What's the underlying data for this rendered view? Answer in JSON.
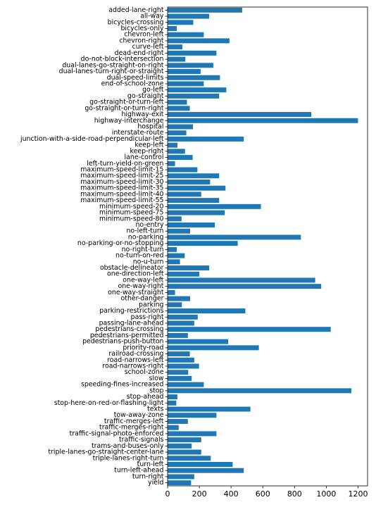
{
  "chart_data": {
    "type": "bar",
    "orientation": "horizontal",
    "bar_color": "#1f77b4",
    "xlim": [
      0,
      1260
    ],
    "xticks": [
      0,
      200,
      400,
      600,
      800,
      1000,
      1200
    ],
    "grid": false,
    "categories": [
      "added-lane-right",
      "all-way",
      "bicycles-crossing",
      "bicycles-only",
      "chevron-left",
      "chevron-right",
      "curve-left",
      "dead-end-right",
      "do-not-block-intersection",
      "dual-lanes-go-straight-on-right",
      "dual-lanes-turn-right-or-straight",
      "dual-speed-limits",
      "end-of-school-zone",
      "go-left",
      "go-straight",
      "go-straight-or-turn-left",
      "go-straight-or-turn-right",
      "highway-exit",
      "highway-interchange",
      "hospital",
      "interstate-route",
      "junction-with-a-side-road-perpendicular-left",
      "keep-left",
      "keep-right",
      "lane-control",
      "left-turn-yield-on-green",
      "maximum-speed-limit-15",
      "maximum-speed-limit-25",
      "maximum-speed-limit-30",
      "maximum-speed-limit-35",
      "maximum-speed-limit-40",
      "maximum-speed-limit-55",
      "minimum-speed-20",
      "minimum-speed-75",
      "minimum-speed-80",
      "no-entry",
      "no-left-turn",
      "no-parking",
      "no-parking-or-no-stopping",
      "no-right-turn",
      "no-turn-on-red",
      "no-u-turn",
      "obstacle-delineator",
      "one-direction-left",
      "one-way-left",
      "one-way-right",
      "one-way-straight",
      "other-danger",
      "parking",
      "parking-restrictions",
      "pass-right",
      "passing-lane-ahead",
      "pedestrians-crossing",
      "pedestrians-permitted",
      "pedestrians-push-button",
      "priority-road",
      "railroad-crossing",
      "road-narrows-left",
      "road-narrows-right",
      "school-zone",
      "slow",
      "speeding-fines-increased",
      "stop",
      "stop-ahead",
      "stop-here-on-red-or-flashing-light",
      "texts",
      "tow-away-zone",
      "traffic-merges-left",
      "traffic-merges-right",
      "traffic-signal-photo-enforced",
      "traffic-signals",
      "trams-and-buses-only",
      "triple-lanes-go-straight-center-lane",
      "triple-lanes-right-turn",
      "turn-left",
      "turn-left-ahead",
      "turn-right",
      "yield"
    ],
    "values": [
      470,
      262,
      162,
      58,
      228,
      390,
      93,
      308,
      112,
      288,
      208,
      330,
      228,
      370,
      325,
      122,
      140,
      905,
      1200,
      160,
      118,
      480,
      62,
      110,
      158,
      47,
      188,
      325,
      268,
      365,
      212,
      325,
      588,
      360,
      88,
      298,
      142,
      840,
      442,
      58,
      108,
      78,
      262,
      200,
      930,
      968,
      47,
      142,
      90,
      490,
      190,
      168,
      1028,
      128,
      382,
      575,
      140,
      168,
      198,
      130,
      152,
      228,
      1158,
      62,
      55,
      522,
      308,
      128,
      70,
      308,
      212,
      152,
      212,
      272,
      410,
      480,
      168,
      148
    ]
  }
}
